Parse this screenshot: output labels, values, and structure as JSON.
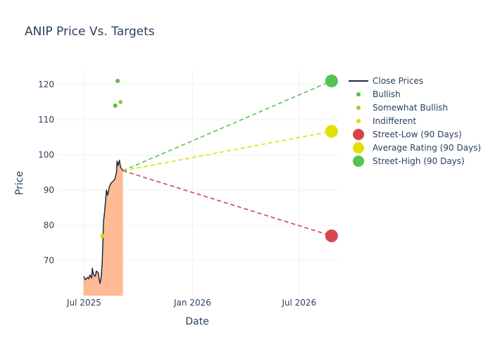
{
  "chart_data": {
    "type": "line",
    "title": "ANIP Price Vs. Targets",
    "xlabel": "Date",
    "ylabel": "Price",
    "x_ticks": [
      "Jul 2025",
      "Jan 2026",
      "Jul 2026"
    ],
    "y_ticks": [
      70,
      80,
      90,
      100,
      110,
      120
    ],
    "xlim": [
      "2025-05-15",
      "2026-09-05"
    ],
    "ylim": [
      60,
      124
    ],
    "grid": true,
    "legend_position": "right",
    "close_prices": {
      "name": "Close Prices",
      "color": "#1f2d3d",
      "fill_color": "#fdba94",
      "points": [
        [
          "2025-06-30",
          65.5
        ],
        [
          "2025-07-02",
          65.0
        ],
        [
          "2025-07-03",
          64.5
        ],
        [
          "2025-07-07",
          65.2
        ],
        [
          "2025-07-09",
          64.8
        ],
        [
          "2025-07-11",
          65.9
        ],
        [
          "2025-07-14",
          65.0
        ],
        [
          "2025-07-15",
          67.8
        ],
        [
          "2025-07-17",
          66.0
        ],
        [
          "2025-07-20",
          65.5
        ],
        [
          "2025-07-22",
          67.0
        ],
        [
          "2025-07-25",
          66.5
        ],
        [
          "2025-07-28",
          63.5
        ],
        [
          "2025-07-30",
          65.0
        ],
        [
          "2025-08-01",
          70.0
        ],
        [
          "2025-08-03",
          81.0
        ],
        [
          "2025-08-05",
          84.0
        ],
        [
          "2025-08-07",
          88.0
        ],
        [
          "2025-08-08",
          90.0
        ],
        [
          "2025-08-10",
          88.5
        ],
        [
          "2025-08-13",
          91.0
        ],
        [
          "2025-08-16",
          92.0
        ],
        [
          "2025-08-19",
          92.5
        ],
        [
          "2025-08-22",
          93.0
        ],
        [
          "2025-08-25",
          95.0
        ],
        [
          "2025-08-26",
          98.2
        ],
        [
          "2025-08-28",
          97.0
        ],
        [
          "2025-08-30",
          98.5
        ],
        [
          "2025-09-01",
          96.5
        ],
        [
          "2025-09-03",
          96.0
        ],
        [
          "2025-09-05",
          95.5
        ]
      ]
    },
    "analyst_ratings": [
      {
        "name": "Bullish",
        "color": "#5dbb4a",
        "points": [
          [
            "2025-08-23",
            114
          ],
          [
            "2025-08-27",
            121
          ]
        ]
      },
      {
        "name": "Somewhat Bullish",
        "color": "#9acd32",
        "points": [
          [
            "2025-09-01",
            115
          ]
        ]
      },
      {
        "name": "Indifferent",
        "color": "#e6d800",
        "points": [
          [
            "2025-08-01",
            77
          ]
        ]
      }
    ],
    "targets": [
      {
        "name": "Street-Low (90 Days)",
        "color": "#d9434a",
        "start": [
          "2025-09-05",
          95.5
        ],
        "end": [
          "2026-08-25",
          77
        ]
      },
      {
        "name": "Average Rating (90 Days)",
        "color": "#e0e000",
        "start": [
          "2025-09-05",
          95.5
        ],
        "end": [
          "2026-08-25",
          106.7
        ]
      },
      {
        "name": "Street-High (90 Days)",
        "color": "#53c353",
        "start": [
          "2025-09-05",
          95.5
        ],
        "end": [
          "2026-08-25",
          121
        ]
      }
    ]
  }
}
